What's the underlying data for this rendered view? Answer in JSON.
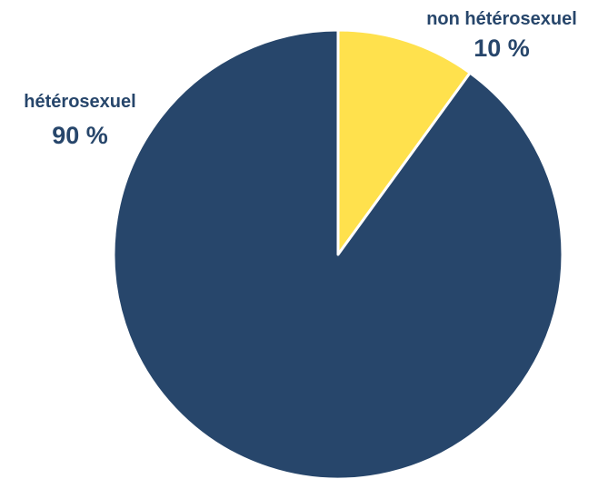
{
  "chart_data": {
    "type": "pie",
    "slices": [
      {
        "label": "non hétérosexuel",
        "value": 10,
        "value_label": "10 %",
        "color": "#FFE14D"
      },
      {
        "label": "hétérosexuel",
        "value": 90,
        "value_label": "90 %",
        "color": "#27466B"
      }
    ],
    "start_angle": "12 o'clock",
    "direction": "clockwise",
    "label_color": "#27466B",
    "title": "",
    "legend": "none"
  }
}
